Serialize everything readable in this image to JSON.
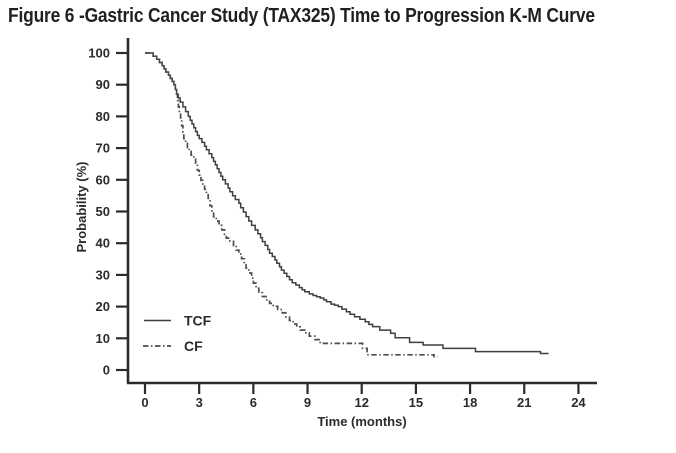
{
  "chart_data": {
    "type": "line",
    "subtype": "kaplan_meier_step",
    "title": "Figure 6 -Gastric Cancer Study (TAX325) Time to Progression K-M Curve",
    "xlabel": "Time (months)",
    "ylabel": "Probability (%)",
    "xticks": [
      0,
      3,
      6,
      9,
      12,
      15,
      18,
      21,
      24
    ],
    "yticks": [
      0,
      10,
      20,
      30,
      40,
      50,
      60,
      70,
      80,
      90,
      100
    ],
    "xlim": [
      0,
      25
    ],
    "ylim": [
      0,
      100
    ],
    "grid": false,
    "legend": {
      "position": "inside-lower-left",
      "entries": [
        "TCF",
        "CF"
      ]
    },
    "series": [
      {
        "name": "TCF",
        "line_style": "solid",
        "color": "#3f3f3f",
        "points": [
          [
            0,
            100
          ],
          [
            0.45,
            99
          ],
          [
            0.65,
            98
          ],
          [
            0.8,
            97
          ],
          [
            0.95,
            96
          ],
          [
            1.05,
            95
          ],
          [
            1.15,
            94
          ],
          [
            1.3,
            93
          ],
          [
            1.4,
            92
          ],
          [
            1.5,
            91
          ],
          [
            1.6,
            90
          ],
          [
            1.68,
            88.5
          ],
          [
            1.75,
            87
          ],
          [
            1.85,
            85.8
          ],
          [
            1.95,
            84.5
          ],
          [
            2.1,
            83
          ],
          [
            2.25,
            81.5
          ],
          [
            2.4,
            80
          ],
          [
            2.5,
            78.8
          ],
          [
            2.6,
            77.6
          ],
          [
            2.7,
            76.4
          ],
          [
            2.8,
            75.2
          ],
          [
            2.9,
            74
          ],
          [
            3.0,
            73
          ],
          [
            3.15,
            71.8
          ],
          [
            3.3,
            70.6
          ],
          [
            3.4,
            69.5
          ],
          [
            3.55,
            68.2
          ],
          [
            3.7,
            67
          ],
          [
            3.8,
            65.8
          ],
          [
            3.9,
            64.7
          ],
          [
            4.0,
            63.5
          ],
          [
            4.1,
            62.3
          ],
          [
            4.2,
            61.1
          ],
          [
            4.3,
            60
          ],
          [
            4.45,
            58.7
          ],
          [
            4.6,
            57.4
          ],
          [
            4.7,
            56.2
          ],
          [
            4.85,
            55
          ],
          [
            5.0,
            53.8
          ],
          [
            5.2,
            52.6
          ],
          [
            5.3,
            51.2
          ],
          [
            5.45,
            49.8
          ],
          [
            5.6,
            48.4
          ],
          [
            5.75,
            47
          ],
          [
            5.9,
            45.6
          ],
          [
            6.1,
            44.2
          ],
          [
            6.25,
            43
          ],
          [
            6.4,
            41.7
          ],
          [
            6.5,
            40.5
          ],
          [
            6.65,
            39.3
          ],
          [
            6.8,
            38
          ],
          [
            6.9,
            36.8
          ],
          [
            7.05,
            35.8
          ],
          [
            7.2,
            34.7
          ],
          [
            7.3,
            33.7
          ],
          [
            7.45,
            32.6
          ],
          [
            7.55,
            31.5
          ],
          [
            7.7,
            30.5
          ],
          [
            7.85,
            29.5
          ],
          [
            8.0,
            28.5
          ],
          [
            8.15,
            27.5
          ],
          [
            8.35,
            26.8
          ],
          [
            8.55,
            26
          ],
          [
            8.7,
            25.3
          ],
          [
            8.85,
            24.7
          ],
          [
            9.1,
            24
          ],
          [
            9.3,
            23.5
          ],
          [
            9.5,
            23.1
          ],
          [
            9.7,
            22.7
          ],
          [
            9.9,
            22.1
          ],
          [
            10.05,
            21.5
          ],
          [
            10.3,
            20.8
          ],
          [
            10.5,
            20.4
          ],
          [
            10.7,
            20
          ],
          [
            10.9,
            19.2
          ],
          [
            11.15,
            18.4
          ],
          [
            11.35,
            17.6
          ],
          [
            11.6,
            16.8
          ],
          [
            11.9,
            16
          ],
          [
            12.2,
            15.2
          ],
          [
            12.4,
            14.4
          ],
          [
            12.6,
            13.7
          ],
          [
            13.0,
            12.6
          ],
          [
            13.6,
            11.6
          ],
          [
            13.85,
            10.2
          ],
          [
            14.65,
            8.7
          ],
          [
            15.4,
            7.9
          ],
          [
            16.5,
            6.8
          ],
          [
            18.3,
            5.8
          ],
          [
            21.9,
            5.2
          ],
          [
            22.35,
            5.2
          ]
        ]
      },
      {
        "name": "CF",
        "line_style": "dash-dot",
        "color": "#4d4d4d",
        "points": [
          [
            0,
            100
          ],
          [
            0.45,
            99
          ],
          [
            0.65,
            98
          ],
          [
            0.8,
            97
          ],
          [
            0.95,
            96
          ],
          [
            1.05,
            95
          ],
          [
            1.15,
            94
          ],
          [
            1.3,
            93
          ],
          [
            1.4,
            92
          ],
          [
            1.5,
            91
          ],
          [
            1.6,
            90
          ],
          [
            1.68,
            88.5
          ],
          [
            1.75,
            87
          ],
          [
            1.8,
            85
          ],
          [
            1.85,
            83
          ],
          [
            1.9,
            81
          ],
          [
            1.97,
            79
          ],
          [
            2.03,
            77
          ],
          [
            2.1,
            75
          ],
          [
            2.15,
            73
          ],
          [
            2.25,
            71.5
          ],
          [
            2.35,
            70.2
          ],
          [
            2.45,
            69
          ],
          [
            2.55,
            67.8
          ],
          [
            2.7,
            66.5
          ],
          [
            2.8,
            65
          ],
          [
            2.9,
            63
          ],
          [
            3.0,
            61.5
          ],
          [
            3.1,
            59.8
          ],
          [
            3.2,
            58.3
          ],
          [
            3.3,
            57
          ],
          [
            3.4,
            55.3
          ],
          [
            3.5,
            53.4
          ],
          [
            3.6,
            51.8
          ],
          [
            3.7,
            50.2
          ],
          [
            3.8,
            48.3
          ],
          [
            3.95,
            47
          ],
          [
            4.1,
            45.6
          ],
          [
            4.25,
            44.2
          ],
          [
            4.4,
            42.8
          ],
          [
            4.5,
            41.6
          ],
          [
            4.7,
            40.6
          ],
          [
            4.9,
            39.2
          ],
          [
            5.05,
            37.8
          ],
          [
            5.2,
            36.6
          ],
          [
            5.35,
            35.1
          ],
          [
            5.5,
            33.6
          ],
          [
            5.6,
            32.1
          ],
          [
            5.75,
            30.6
          ],
          [
            5.9,
            29
          ],
          [
            6.0,
            27.4
          ],
          [
            6.15,
            25.8
          ],
          [
            6.3,
            24.4
          ],
          [
            6.5,
            23.2
          ],
          [
            6.7,
            22.1
          ],
          [
            6.9,
            21
          ],
          [
            7.1,
            20.1
          ],
          [
            7.35,
            19.1
          ],
          [
            7.6,
            18
          ],
          [
            7.8,
            16.7
          ],
          [
            8.0,
            15.6
          ],
          [
            8.2,
            14.5
          ],
          [
            8.4,
            13.6
          ],
          [
            8.6,
            12.6
          ],
          [
            8.85,
            11.7
          ],
          [
            9.1,
            10.7
          ],
          [
            9.4,
            9.6
          ],
          [
            9.7,
            8.4
          ],
          [
            12.05,
            6.8
          ],
          [
            12.3,
            4.8
          ],
          [
            16.0,
            4.2
          ],
          [
            16.2,
            4.2
          ]
        ]
      }
    ]
  },
  "colors": {
    "background": "#ffffff",
    "title_text": "#231f20",
    "axis": "#2b2b2b",
    "tcf_line": "#3f3f3f",
    "cf_line": "#4d4d4d"
  }
}
